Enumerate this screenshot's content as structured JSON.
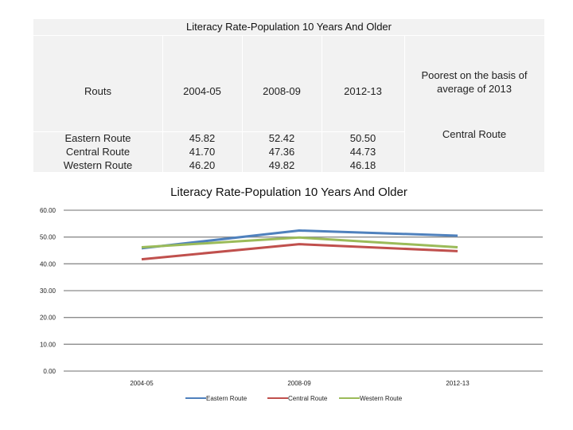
{
  "table": {
    "title": "Literacy Rate-Population 10 Years And Older",
    "headers": [
      "Routs",
      "2004-05",
      "2008-09",
      "2012-13"
    ],
    "poorest_header": "Poorest on the basis of average of 2013",
    "poorest_value": "Central Route",
    "rows": [
      {
        "route": "Eastern Route",
        "v1": "45.82",
        "v2": "52.42",
        "v3": "50.50"
      },
      {
        "route": "Central Route",
        "v1": "41.70",
        "v2": "47.36",
        "v3": "44.73"
      },
      {
        "route": "Western Route",
        "v1": "46.20",
        "v2": "49.82",
        "v3": "46.18"
      }
    ]
  },
  "chart_data": {
    "type": "line",
    "title": "Literacy Rate-Population 10 Years And Older",
    "categories": [
      "2004-05",
      "2008-09",
      "2012-13"
    ],
    "series": [
      {
        "name": "Eastern Route",
        "values": [
          45.82,
          52.42,
          50.5
        ],
        "color": "#4f81bd"
      },
      {
        "name": "Central Route",
        "values": [
          41.7,
          47.36,
          44.73
        ],
        "color": "#c0504d"
      },
      {
        "name": "Western Route",
        "values": [
          46.2,
          49.82,
          46.18
        ],
        "color": "#9bbb59"
      }
    ],
    "y_ticks": [
      "0.00",
      "10.00",
      "20.00",
      "30.00",
      "40.00",
      "50.00",
      "60.00"
    ],
    "ylim": [
      0,
      60
    ],
    "grid": true,
    "legend": "bottom"
  }
}
